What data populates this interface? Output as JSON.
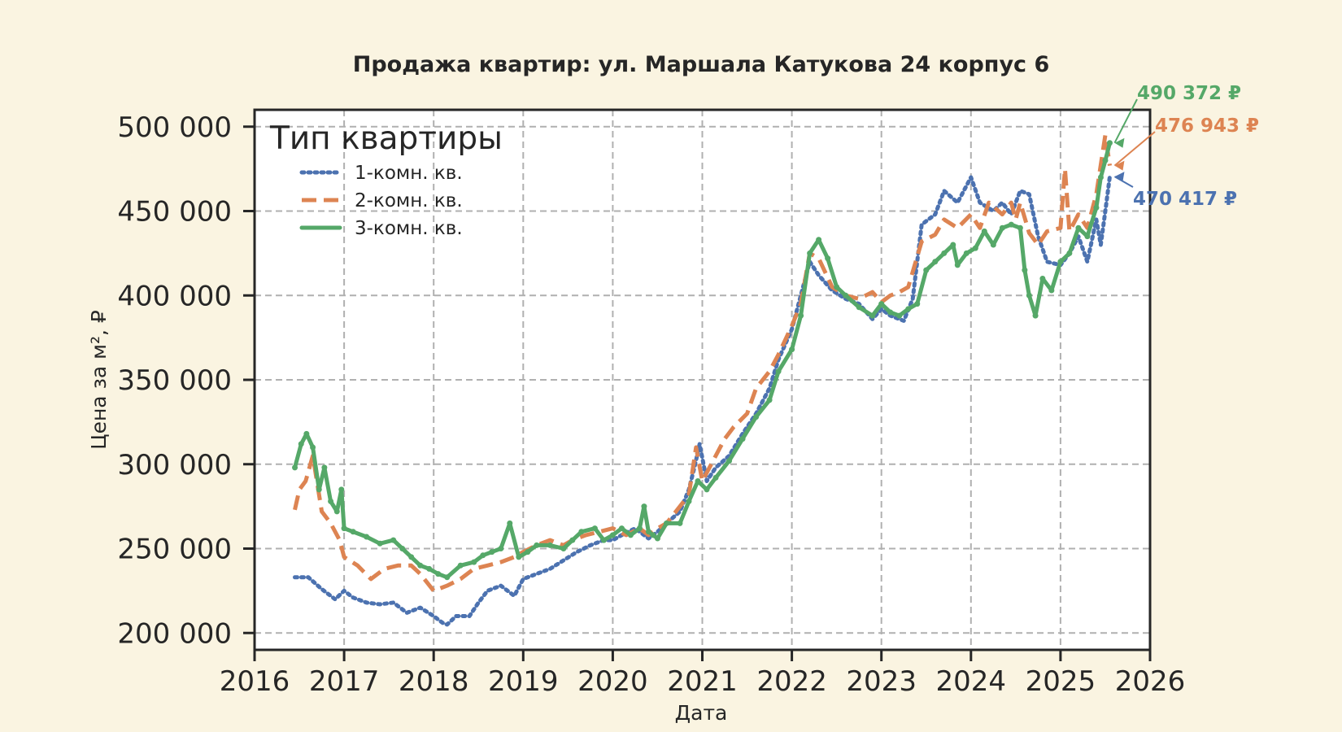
{
  "chart_data": {
    "type": "line",
    "title": "Продажа квартир: ул. Маршала Катукова 24 корпус 6",
    "xlabel": "Дата",
    "ylabel": "Цена за м², ₽",
    "xlim": [
      2016,
      2026
    ],
    "ylim": [
      190000,
      510000
    ],
    "xticks": [
      "2016",
      "2017",
      "2018",
      "2019",
      "2020",
      "2021",
      "2022",
      "2023",
      "2024",
      "2025",
      "2026"
    ],
    "yticks": [
      "200 000",
      "250 000",
      "300 000",
      "350 000",
      "400 000",
      "450 000",
      "500 000"
    ],
    "grid": true,
    "legend": {
      "title": "Тип квартиры",
      "placement": "top-left"
    },
    "series": [
      {
        "name": "1-комн. кв.",
        "color": "#4c72b0",
        "style": "dotted",
        "end_label": "470 417 ₽",
        "x": [
          2016.45,
          2016.6,
          2016.75,
          2016.9,
          2017.0,
          2017.1,
          2017.25,
          2017.4,
          2017.55,
          2017.7,
          2017.85,
          2018.0,
          2018.1,
          2018.15,
          2018.25,
          2018.4,
          2018.5,
          2018.6,
          2018.75,
          2018.9,
          2019.0,
          2019.15,
          2019.3,
          2019.45,
          2019.6,
          2019.75,
          2019.9,
          2020.0,
          2020.1,
          2020.25,
          2020.4,
          2020.5,
          2020.6,
          2020.75,
          2020.85,
          2020.92,
          2020.97,
          2021.05,
          2021.15,
          2021.3,
          2021.45,
          2021.6,
          2021.75,
          2021.85,
          2022.0,
          2022.1,
          2022.2,
          2022.3,
          2022.45,
          2022.6,
          2022.75,
          2022.9,
          2023.0,
          2023.1,
          2023.25,
          2023.35,
          2023.45,
          2023.6,
          2023.7,
          2023.85,
          2024.0,
          2024.1,
          2024.25,
          2024.35,
          2024.45,
          2024.55,
          2024.65,
          2024.75,
          2024.85,
          2025.0,
          2025.1,
          2025.2,
          2025.3,
          2025.4,
          2025.45,
          2025.5,
          2025.55
        ],
        "y": [
          233000,
          233000,
          226000,
          220000,
          225000,
          221000,
          218000,
          217000,
          218000,
          212000,
          215000,
          210000,
          206000,
          205000,
          210000,
          210000,
          218000,
          225000,
          228000,
          222000,
          232000,
          235000,
          238000,
          243000,
          248000,
          252000,
          255000,
          255000,
          258000,
          262000,
          256000,
          260000,
          265000,
          272000,
          285000,
          300000,
          312000,
          290000,
          298000,
          305000,
          318000,
          330000,
          345000,
          362000,
          380000,
          400000,
          420000,
          412000,
          403000,
          398000,
          395000,
          386000,
          392000,
          388000,
          385000,
          398000,
          442000,
          448000,
          462000,
          455000,
          470000,
          455000,
          450000,
          455000,
          448000,
          462000,
          460000,
          435000,
          420000,
          418000,
          425000,
          435000,
          420000,
          445000,
          430000,
          450000,
          470417
        ]
      },
      {
        "name": "2-комн. кв.",
        "color": "#dd8452",
        "style": "dashed",
        "end_label": "476 943 ₽",
        "x": [
          2016.45,
          2016.5,
          2016.57,
          2016.65,
          2016.75,
          2016.85,
          2016.95,
          2017.0,
          2017.15,
          2017.3,
          2017.45,
          2017.6,
          2017.75,
          2017.85,
          2018.0,
          2018.15,
          2018.3,
          2018.45,
          2018.6,
          2018.75,
          2018.9,
          2019.0,
          2019.15,
          2019.3,
          2019.45,
          2019.55,
          2019.7,
          2019.85,
          2020.0,
          2020.15,
          2020.3,
          2020.4,
          2020.5,
          2020.6,
          2020.75,
          2020.85,
          2020.93,
          2021.0,
          2021.1,
          2021.25,
          2021.35,
          2021.5,
          2021.6,
          2021.75,
          2021.85,
          2022.0,
          2022.1,
          2022.2,
          2022.3,
          2022.45,
          2022.6,
          2022.75,
          2022.9,
          2023.0,
          2023.1,
          2023.2,
          2023.3,
          2023.45,
          2023.6,
          2023.7,
          2023.85,
          2024.0,
          2024.1,
          2024.2,
          2024.35,
          2024.45,
          2024.5,
          2024.55,
          2024.65,
          2024.75,
          2024.85,
          2025.0,
          2025.05,
          2025.1,
          2025.2,
          2025.3,
          2025.4,
          2025.5,
          2025.55
        ],
        "y": [
          273000,
          285000,
          290000,
          305000,
          272000,
          265000,
          255000,
          245000,
          240000,
          232000,
          238000,
          240000,
          240000,
          235000,
          225000,
          228000,
          232000,
          238000,
          240000,
          242000,
          245000,
          248000,
          252000,
          255000,
          252000,
          255000,
          258000,
          260000,
          262000,
          258000,
          262000,
          258000,
          262000,
          265000,
          275000,
          282000,
          310000,
          290000,
          300000,
          315000,
          322000,
          330000,
          345000,
          355000,
          365000,
          382000,
          395000,
          425000,
          422000,
          405000,
          400000,
          398000,
          402000,
          396000,
          400000,
          402000,
          405000,
          432000,
          436000,
          445000,
          440000,
          448000,
          440000,
          455000,
          448000,
          455000,
          445000,
          455000,
          437000,
          430000,
          438000,
          440000,
          475000,
          438000,
          448000,
          440000,
          460000,
          495000,
          476943
        ]
      },
      {
        "name": "3-комн. кв.",
        "color": "#55a868",
        "style": "solid",
        "end_label": "490 372 ₽",
        "x": [
          2016.45,
          2016.52,
          2016.58,
          2016.65,
          2016.72,
          2016.78,
          2016.85,
          2016.92,
          2016.97,
          2017.0,
          2017.1,
          2017.25,
          2017.4,
          2017.55,
          2017.65,
          2017.75,
          2017.85,
          2017.95,
          2018.05,
          2018.15,
          2018.3,
          2018.45,
          2018.55,
          2018.65,
          2018.75,
          2018.85,
          2018.95,
          2019.05,
          2019.15,
          2019.3,
          2019.45,
          2019.55,
          2019.65,
          2019.8,
          2019.9,
          2020.0,
          2020.1,
          2020.2,
          2020.3,
          2020.35,
          2020.4,
          2020.45,
          2020.5,
          2020.6,
          2020.75,
          2020.85,
          2020.95,
          2021.05,
          2021.15,
          2021.3,
          2021.45,
          2021.6,
          2021.75,
          2021.85,
          2022.0,
          2022.1,
          2022.2,
          2022.3,
          2022.4,
          2022.5,
          2022.6,
          2022.75,
          2022.9,
          2023.0,
          2023.1,
          2023.2,
          2023.3,
          2023.4,
          2023.5,
          2023.6,
          2023.7,
          2023.8,
          2023.85,
          2023.95,
          2024.05,
          2024.15,
          2024.25,
          2024.35,
          2024.45,
          2024.55,
          2024.6,
          2024.65,
          2024.72,
          2024.8,
          2024.9,
          2025.0,
          2025.1,
          2025.2,
          2025.3,
          2025.4,
          2025.45,
          2025.5,
          2025.55
        ],
        "y": [
          298000,
          312000,
          318000,
          310000,
          285000,
          298000,
          278000,
          272000,
          285000,
          262000,
          260000,
          257000,
          253000,
          255000,
          250000,
          245000,
          240000,
          238000,
          235000,
          233000,
          240000,
          242000,
          246000,
          248000,
          250000,
          265000,
          245000,
          248000,
          252000,
          252000,
          250000,
          255000,
          260000,
          262000,
          255000,
          258000,
          262000,
          258000,
          262000,
          275000,
          260000,
          258000,
          256000,
          265000,
          265000,
          278000,
          290000,
          285000,
          292000,
          302000,
          315000,
          328000,
          338000,
          355000,
          368000,
          388000,
          425000,
          433000,
          422000,
          405000,
          400000,
          393000,
          388000,
          395000,
          390000,
          388000,
          392000,
          395000,
          415000,
          420000,
          425000,
          430000,
          418000,
          425000,
          428000,
          438000,
          430000,
          440000,
          442000,
          440000,
          415000,
          400000,
          388000,
          410000,
          403000,
          420000,
          425000,
          440000,
          435000,
          452000,
          470000,
          480000,
          490372
        ]
      }
    ]
  }
}
